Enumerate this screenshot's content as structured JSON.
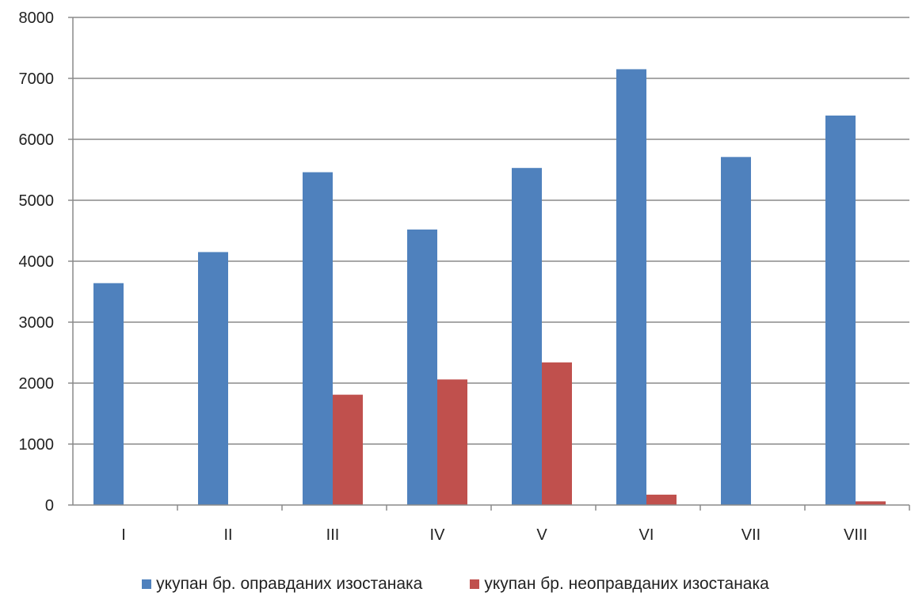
{
  "chart_data": {
    "type": "bar",
    "categories": [
      "I",
      "II",
      "III",
      "IV",
      "V",
      "VI",
      "VII",
      "VIII"
    ],
    "series": [
      {
        "name": "укупан бр. оправданих изостанака",
        "color": "#4f81bd",
        "values": [
          3640,
          4150,
          5460,
          4520,
          5530,
          7150,
          5710,
          6390
        ]
      },
      {
        "name": "укупан бр. неоправданих изостанака",
        "color": "#c0504d",
        "values": [
          0,
          0,
          1810,
          2060,
          2340,
          170,
          0,
          60
        ]
      }
    ],
    "ylim": [
      0,
      8000
    ],
    "yticks": [
      "0",
      "1000",
      "2000",
      "3000",
      "4000",
      "5000",
      "6000",
      "7000",
      "8000"
    ],
    "grid": true,
    "legend_position": "bottom"
  }
}
